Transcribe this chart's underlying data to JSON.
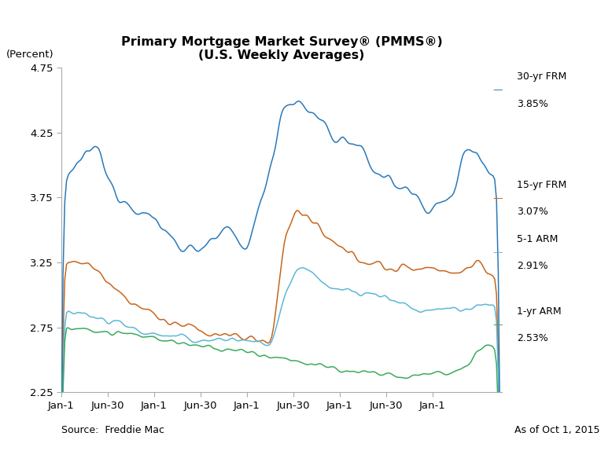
{
  "title_line1": "Primary Mortgage Market Survey® (PMMS®)",
  "title_line2": "(U.S. Weekly Averages)",
  "ylabel": "(Percent)",
  "ylim": [
    2.25,
    4.75
  ],
  "yticks": [
    2.25,
    2.75,
    3.25,
    3.75,
    4.25,
    4.75
  ],
  "ytick_labels": [
    "2.25",
    "2.75",
    "3.25",
    "3.75",
    "4.25",
    "4.75"
  ],
  "source_text": "Source:  Freddie Mac",
  "date_text": "As of Oct 1, 2015",
  "legend_entries": [
    {
      "label": "30-yr FRM",
      "value": "3.85%",
      "color": "#2979B9"
    },
    {
      "label": "15-yr FRM",
      "value": "3.07%",
      "color": "#C8651B"
    },
    {
      "label": "5-1 ARM",
      "value": "2.91%",
      "color": "#5BB8D4"
    },
    {
      "label": "1-yr ARM",
      "value": "2.53%",
      "color": "#3AAA5C"
    }
  ],
  "background_color": "#FFFFFF",
  "line_width": 1.1,
  "n_points": 247,
  "x_tick_labels": [
    "Jan-1",
    "Jun-30",
    "Jan-1",
    "Jun-30",
    "Jan-1",
    "Jun-30",
    "Jan-1",
    "Jun-30",
    "Jan-1"
  ],
  "x_tick_positions": [
    0,
    26,
    52,
    78,
    104,
    130,
    156,
    182,
    208
  ],
  "figsize": [
    7.78,
    5.74
  ],
  "dpi": 100
}
